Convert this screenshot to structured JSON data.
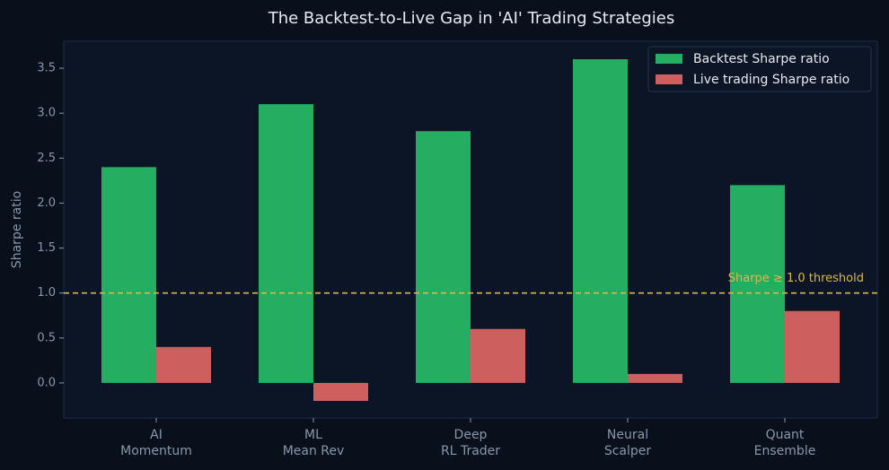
{
  "chart_data": {
    "type": "bar",
    "title": "The Backtest-to-Live Gap in 'AI' Trading Strategies",
    "y_label": "Sharpe ratio",
    "categories": [
      "AI\nMomentum",
      "ML\nMean Rev",
      "Deep\nRL Trader",
      "Neural\nScalper",
      "Quant\nEnsemble"
    ],
    "series": [
      {
        "name": "Backtest Sharpe ratio",
        "color": "#25ad62",
        "values": [
          2.4,
          3.1,
          2.8,
          3.6,
          2.2
        ]
      },
      {
        "name": "Live trading Sharpe ratio",
        "color": "#cd5f5f",
        "values": [
          0.4,
          -0.2,
          0.6,
          0.1,
          0.8
        ]
      }
    ],
    "ylim": [
      -0.39,
      3.8
    ],
    "yticks": [
      {
        "value": 0,
        "label": "0.0"
      },
      0.5,
      {
        "value": 1,
        "label": "1.0"
      },
      1.5,
      {
        "value": 2,
        "label": "2.0"
      },
      2.5,
      {
        "value": 3,
        "label": "3.0"
      },
      3.5
    ],
    "threshold": {
      "value": 1,
      "label": "Sharpe ≥ 1.0 threshold",
      "color": "#d9b84a"
    },
    "legend": "upper right"
  }
}
